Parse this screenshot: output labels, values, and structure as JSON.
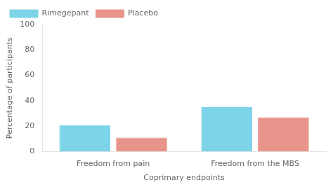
{
  "chart_data": {
    "type": "bar",
    "categories": [
      "Freedom from pain",
      "Freedom from the MBS"
    ],
    "series": [
      {
        "name": "Rimegepant",
        "color": "#7DD4E8",
        "values": [
          21,
          35
        ]
      },
      {
        "name": "Placebo",
        "color": "#E8948A",
        "values": [
          11,
          27
        ]
      }
    ],
    "xlabel": "Coprimary endpoints",
    "ylabel": "Percentage of participants",
    "ylim": [
      0,
      100
    ],
    "yticks": [
      0,
      20,
      40,
      60,
      80,
      100
    ],
    "grid": false,
    "legend": "upper left"
  }
}
